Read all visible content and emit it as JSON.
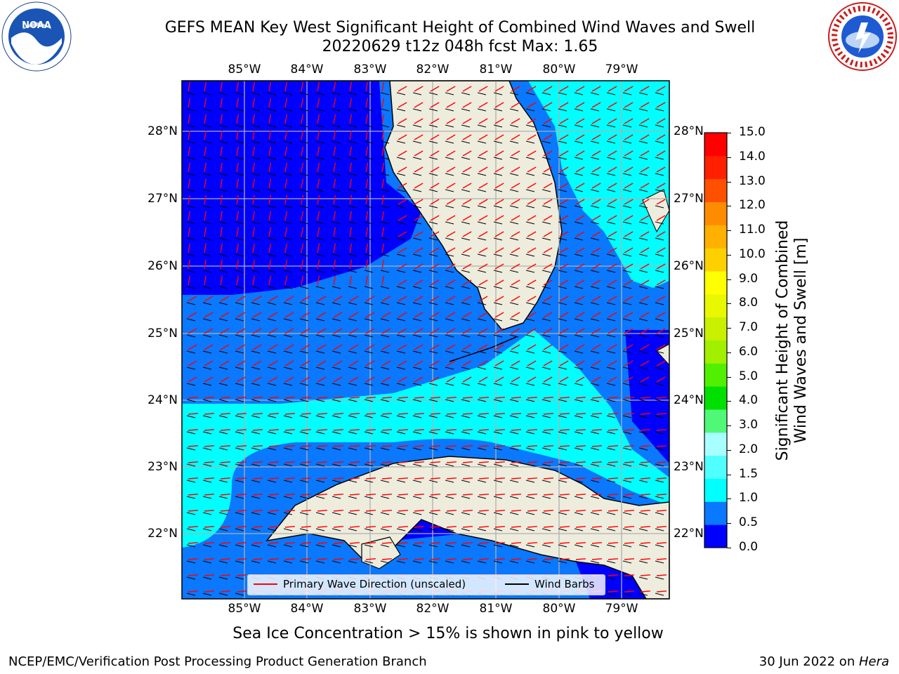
{
  "header": {
    "title_line1": "GEFS MEAN Key West Significant Height of Combined Wind Waves and Swell",
    "title_line2": "20220629 t12z 048h fcst   Max: 1.65"
  },
  "logos": {
    "left": {
      "text": "NOAA",
      "icon": "noaa-logo-icon"
    },
    "right": {
      "text": "NATIONAL WEATHER SERVICE",
      "icon": "nws-logo-icon"
    }
  },
  "map": {
    "lon_labels": [
      "85°W",
      "84°W",
      "83°W",
      "82°W",
      "81°W",
      "80°W",
      "79°W"
    ],
    "lat_labels": [
      "28°N",
      "27°N",
      "26°N",
      "25°N",
      "24°N",
      "23°N",
      "22°N"
    ],
    "legend": {
      "wave_label": "Primary Wave Direction (unscaled)",
      "wave_color": "#ff0000",
      "barb_label": "Wind Barbs",
      "barb_color": "#000000"
    },
    "colors": {
      "land": "#eeecdc",
      "grid": "#b0b0b0"
    }
  },
  "colorbar": {
    "label_line1": "Significant Height of Combined",
    "label_line2": "Wind Waves and Swell [m]",
    "ticks": [
      "0.0",
      "0.5",
      "1.0",
      "1.5",
      "2.0",
      "3.0",
      "4.0",
      "5.0",
      "6.0",
      "7.0",
      "8.0",
      "9.0",
      "10.0",
      "11.0",
      "12.0",
      "13.0",
      "14.0",
      "15.0"
    ],
    "colors": [
      "#0000ff",
      "#0a78ff",
      "#00ffff",
      "#50ffff",
      "#a8ffff",
      "#50f878",
      "#00e000",
      "#50f000",
      "#a0f000",
      "#c8f000",
      "#e8f800",
      "#ffff00",
      "#ffd000",
      "#ffb000",
      "#ff8c00",
      "#ff5000",
      "#ff2000",
      "#ff0000"
    ]
  },
  "note": "Sea Ice Concentration > 15% is shown in pink to yellow",
  "footer": {
    "left": "NCEP/EMC/Verification Post Processing Product Generation Branch",
    "right_date": "30 Jun 2022 on ",
    "right_host": "Hera"
  }
}
